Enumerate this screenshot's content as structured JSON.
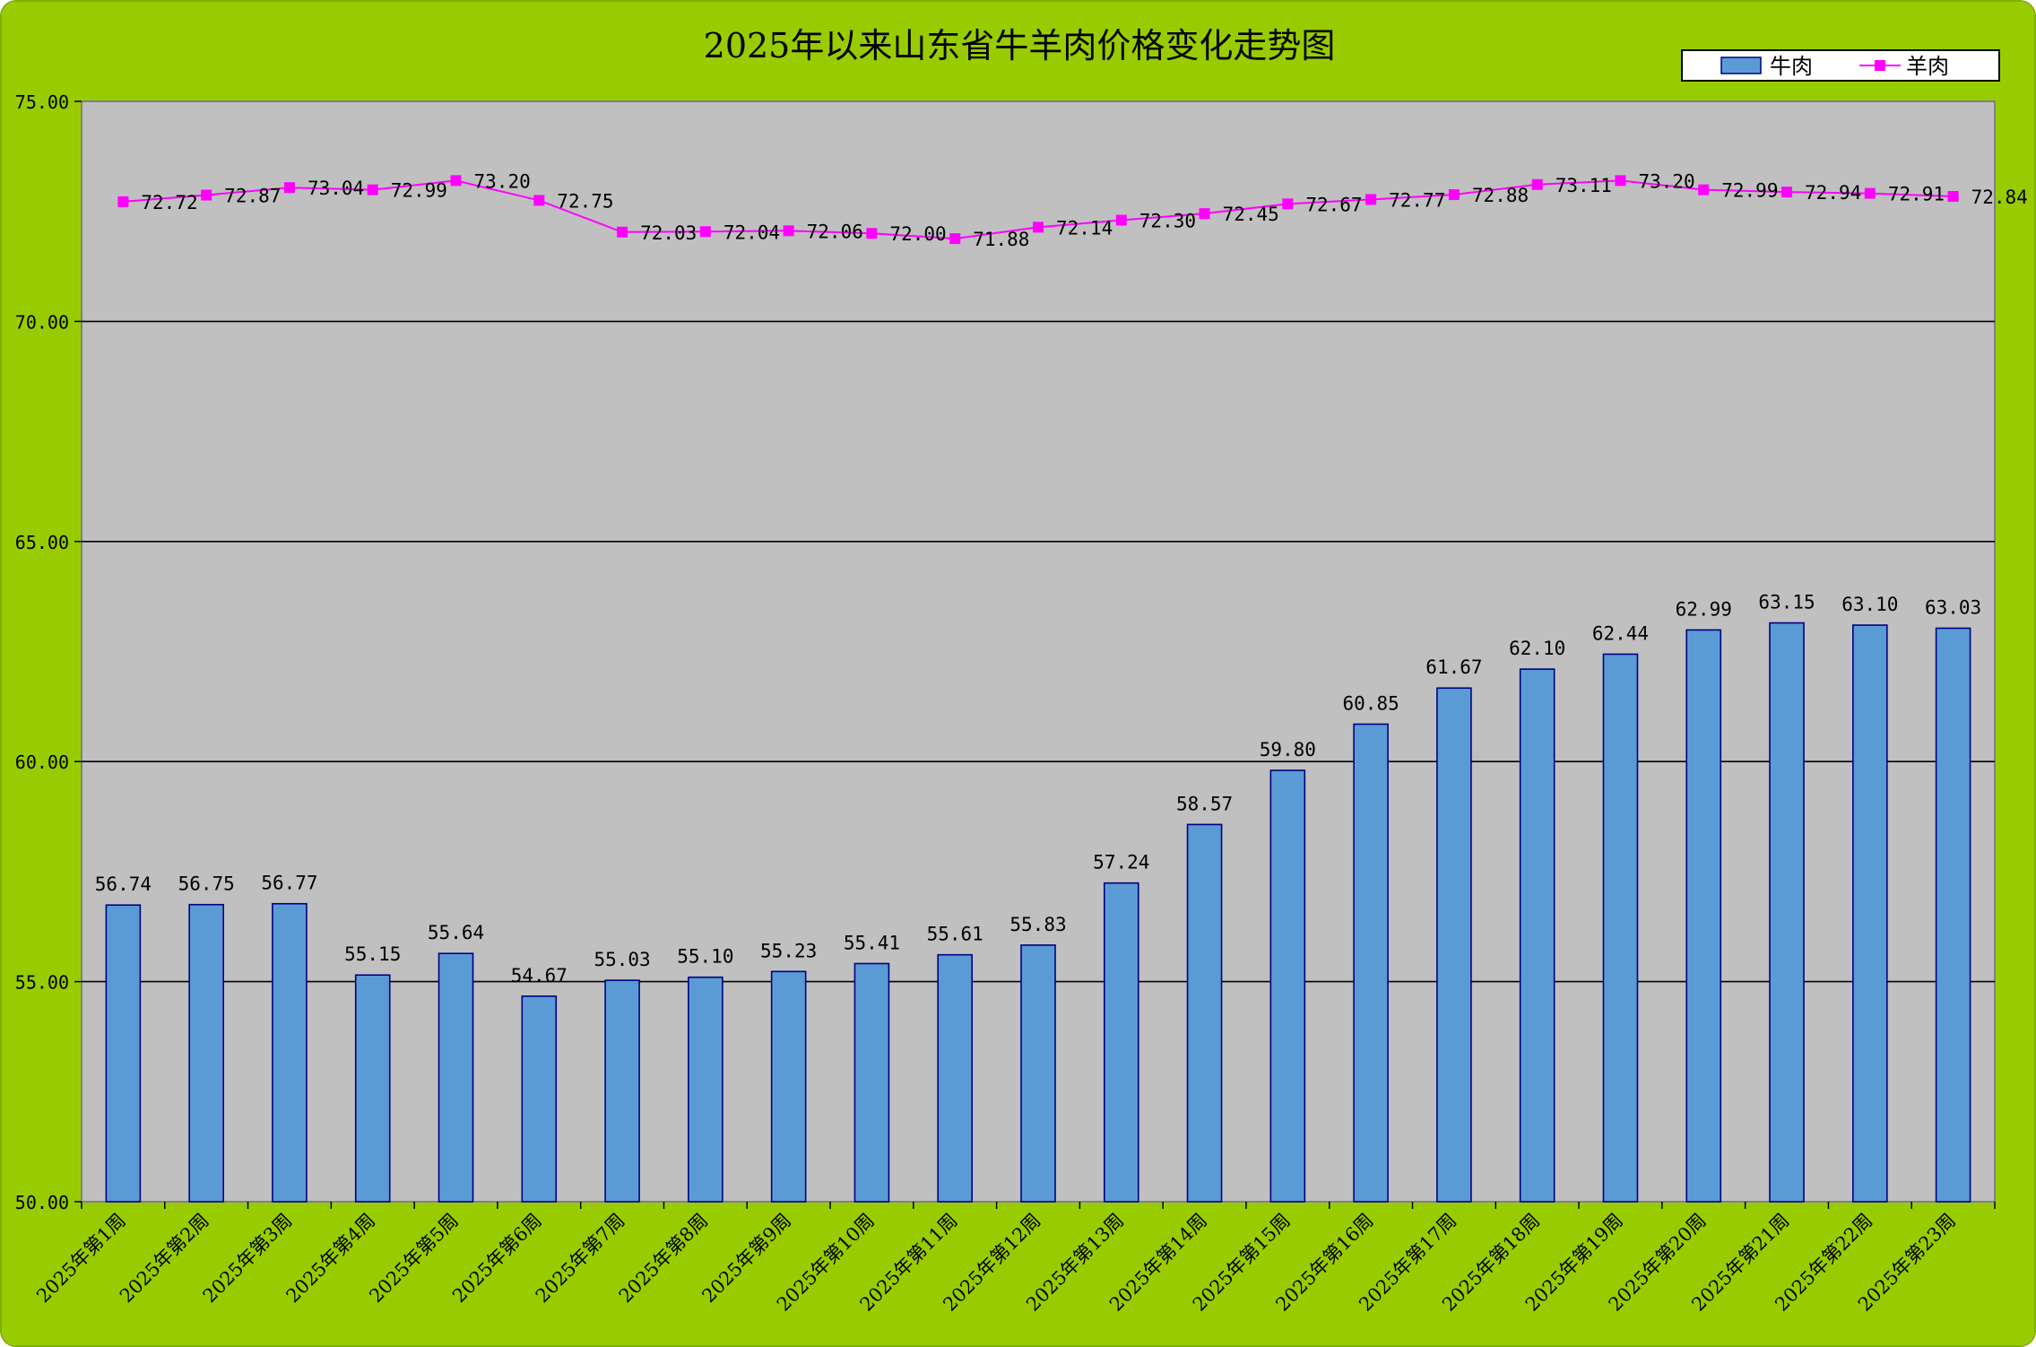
{
  "chart_data": {
    "type": "bar",
    "title": "2025年以来山东省牛羊肉价格变化走势图",
    "categories": [
      "2025年第1周",
      "2025年第2周",
      "2025年第3周",
      "2025年第4周",
      "2025年第5周",
      "2025年第6周",
      "2025年第7周",
      "2025年第8周",
      "2025年第9周",
      "2025年第10周",
      "2025年第11周",
      "2025年第12周",
      "2025年第13周",
      "2025年第14周",
      "2025年第15周",
      "2025年第16周",
      "2025年第17周",
      "2025年第18周",
      "2025年第19周",
      "2025年第20周",
      "2025年第21周",
      "2025年第22周",
      "2025年第23周"
    ],
    "series": [
      {
        "name": "牛肉",
        "kind": "bar",
        "values": [
          56.74,
          56.75,
          56.77,
          55.15,
          55.64,
          54.67,
          55.03,
          55.1,
          55.23,
          55.41,
          55.61,
          55.83,
          57.24,
          58.57,
          59.8,
          60.85,
          61.67,
          62.1,
          62.44,
          62.99,
          63.15,
          63.1,
          63.03
        ],
        "labels": [
          "56.74",
          "56.75",
          "56.77",
          "55.15",
          "55.64",
          "54.67",
          "55.03",
          "55.10",
          "55.23",
          "55.41",
          "55.61",
          "55.83",
          "57.24",
          "58.57",
          "59.80",
          "60.85",
          "61.67",
          "62.10",
          "62.44",
          "62.99",
          "63.15",
          "63.10",
          "63.03"
        ],
        "color": "#5b9bd5",
        "stroke": "#000080"
      },
      {
        "name": "羊肉",
        "kind": "line",
        "values": [
          72.72,
          72.87,
          73.04,
          72.99,
          73.2,
          72.75,
          72.03,
          72.04,
          72.06,
          72.0,
          71.88,
          72.14,
          72.3,
          72.45,
          72.67,
          72.77,
          72.88,
          73.11,
          73.2,
          72.99,
          72.94,
          72.91,
          72.84
        ],
        "labels": [
          "72.72",
          "72.87",
          "73.04",
          "72.99",
          "73.20",
          "72.75",
          "72.03",
          "72.04",
          "72.06",
          "72.00",
          "71.88",
          "72.14",
          "72.30",
          "72.45",
          "72.67",
          "72.77",
          "72.88",
          "73.11",
          "73.20",
          "72.99",
          "72.94",
          "72.91",
          "72.84"
        ],
        "color": "#ff00ff"
      }
    ],
    "ylim": [
      50,
      75
    ],
    "yticks": [
      "50.00",
      "55.00",
      "60.00",
      "65.00",
      "70.00",
      "75.00"
    ],
    "grid": true,
    "legend": "top-right",
    "colors": {
      "background": "#99cc00",
      "plot_area": "#c0c0c0",
      "gridline": "#000000"
    }
  }
}
